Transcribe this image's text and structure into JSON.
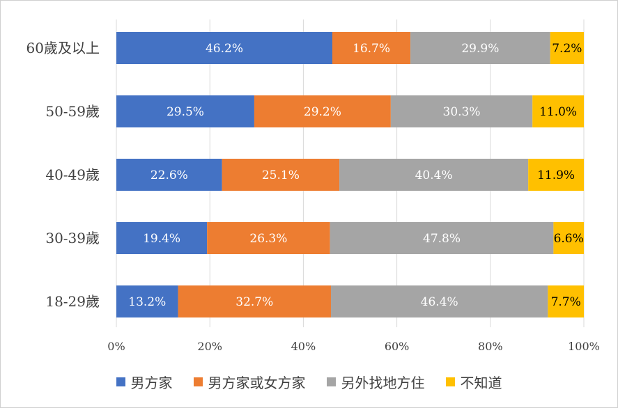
{
  "chart_data": {
    "type": "bar",
    "orientation": "horizontal",
    "stacked": "percent",
    "categories": [
      "60歲及以上",
      "50-59歲",
      "40-49歲",
      "30-39歲",
      "18-29歲"
    ],
    "series": [
      {
        "name": "男方家",
        "color": "#4472C4",
        "values": [
          46.2,
          29.5,
          22.6,
          19.4,
          13.2
        ],
        "labels": [
          "46.2%",
          "29.5%",
          "22.6%",
          "19.4%",
          "13.2%"
        ],
        "label_color": "#ffffff"
      },
      {
        "name": "男方家或女方家",
        "color": "#ED7D31",
        "values": [
          16.7,
          29.2,
          25.1,
          26.3,
          32.7
        ],
        "labels": [
          "16.7%",
          "29.2%",
          "25.1%",
          "26.3%",
          "32.7%"
        ],
        "label_color": "#ffffff"
      },
      {
        "name": "另外找地方住",
        "color": "#A5A5A5",
        "values": [
          29.9,
          30.3,
          40.4,
          47.8,
          46.4
        ],
        "labels": [
          "29.9%",
          "30.3%",
          "40.4%",
          "47.8%",
          "46.4%"
        ],
        "label_color": "#ffffff"
      },
      {
        "name": "不知道",
        "color": "#FFC000",
        "values": [
          7.2,
          11.0,
          11.9,
          6.6,
          7.7
        ],
        "labels": [
          "7.2%",
          "11.0%",
          "11.9%",
          "6.6%",
          "7.7%"
        ],
        "label_color": "#000000"
      }
    ],
    "xticks": [
      "0%",
      "20%",
      "40%",
      "60%",
      "80%",
      "100%"
    ],
    "xlim": [
      0,
      100
    ],
    "grid": "vertical",
    "legend": "bottom",
    "title": "",
    "xlabel": "",
    "ylabel": ""
  },
  "colors": {
    "grid": "#D9D9D9",
    "text": "#404040"
  }
}
